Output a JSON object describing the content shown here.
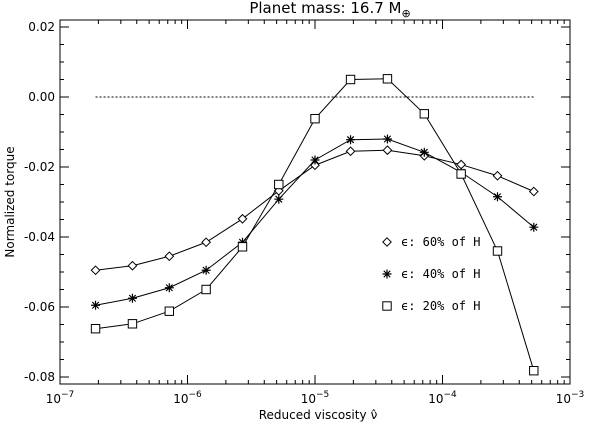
{
  "chart_data": {
    "type": "line",
    "title": "Planet mass: 16.7 M",
    "title_subscript": "⊕",
    "xlabel": "Reduced viscosity",
    "xlabel_symbol": "ν̂",
    "ylabel": "Normalized torque",
    "x_scale": "log",
    "xlim": [
      1e-07,
      0.001
    ],
    "ylim": [
      -0.082,
      0.022
    ],
    "x_ticks": [
      {
        "value": 1e-07,
        "base": "10",
        "exp": "−7"
      },
      {
        "value": 1e-06,
        "base": "10",
        "exp": "−6"
      },
      {
        "value": 1e-05,
        "base": "10",
        "exp": "−5"
      },
      {
        "value": 0.0001,
        "base": "10",
        "exp": "−4"
      },
      {
        "value": 0.001,
        "base": "10",
        "exp": "−3"
      }
    ],
    "y_ticks": [
      {
        "value": 0.02,
        "label": "0.02"
      },
      {
        "value": 0.0,
        "label": "0.00"
      },
      {
        "value": -0.02,
        "label": "-0.02"
      },
      {
        "value": -0.04,
        "label": "-0.04"
      },
      {
        "value": -0.06,
        "label": "-0.06"
      },
      {
        "value": -0.08,
        "label": "-0.08"
      }
    ],
    "grid": false,
    "legend_position": "right-middle",
    "reference_line": {
      "y": 0.0,
      "x_from": 1.9e-07,
      "x_to": 0.00052,
      "style": "dotted"
    },
    "x": [
      1.9e-07,
      3.7e-07,
      7.2e-07,
      1.4e-06,
      2.7e-06,
      5.2e-06,
      1e-05,
      1.9e-05,
      3.7e-05,
      7.2e-05,
      0.00014,
      0.00027,
      0.00052
    ],
    "series": [
      {
        "name": "ϵ: 60% of H",
        "marker": "diamond",
        "values": [
          -0.0495,
          -0.0482,
          -0.0455,
          -0.0415,
          -0.0348,
          -0.0268,
          -0.0195,
          -0.0155,
          -0.0152,
          -0.0168,
          -0.0193,
          -0.0225,
          -0.027
        ]
      },
      {
        "name": "ϵ: 40% of H",
        "marker": "asterisk",
        "values": [
          -0.0595,
          -0.0575,
          -0.0545,
          -0.0495,
          -0.0415,
          -0.0292,
          -0.018,
          -0.0122,
          -0.012,
          -0.0158,
          -0.0215,
          -0.0285,
          -0.0372
        ]
      },
      {
        "name": "ϵ: 20% of H",
        "marker": "square",
        "values": [
          -0.0662,
          -0.0648,
          -0.0612,
          -0.055,
          -0.0428,
          -0.025,
          -0.0062,
          0.005,
          0.0052,
          -0.0048,
          -0.022,
          -0.044,
          -0.0782
        ]
      }
    ]
  }
}
